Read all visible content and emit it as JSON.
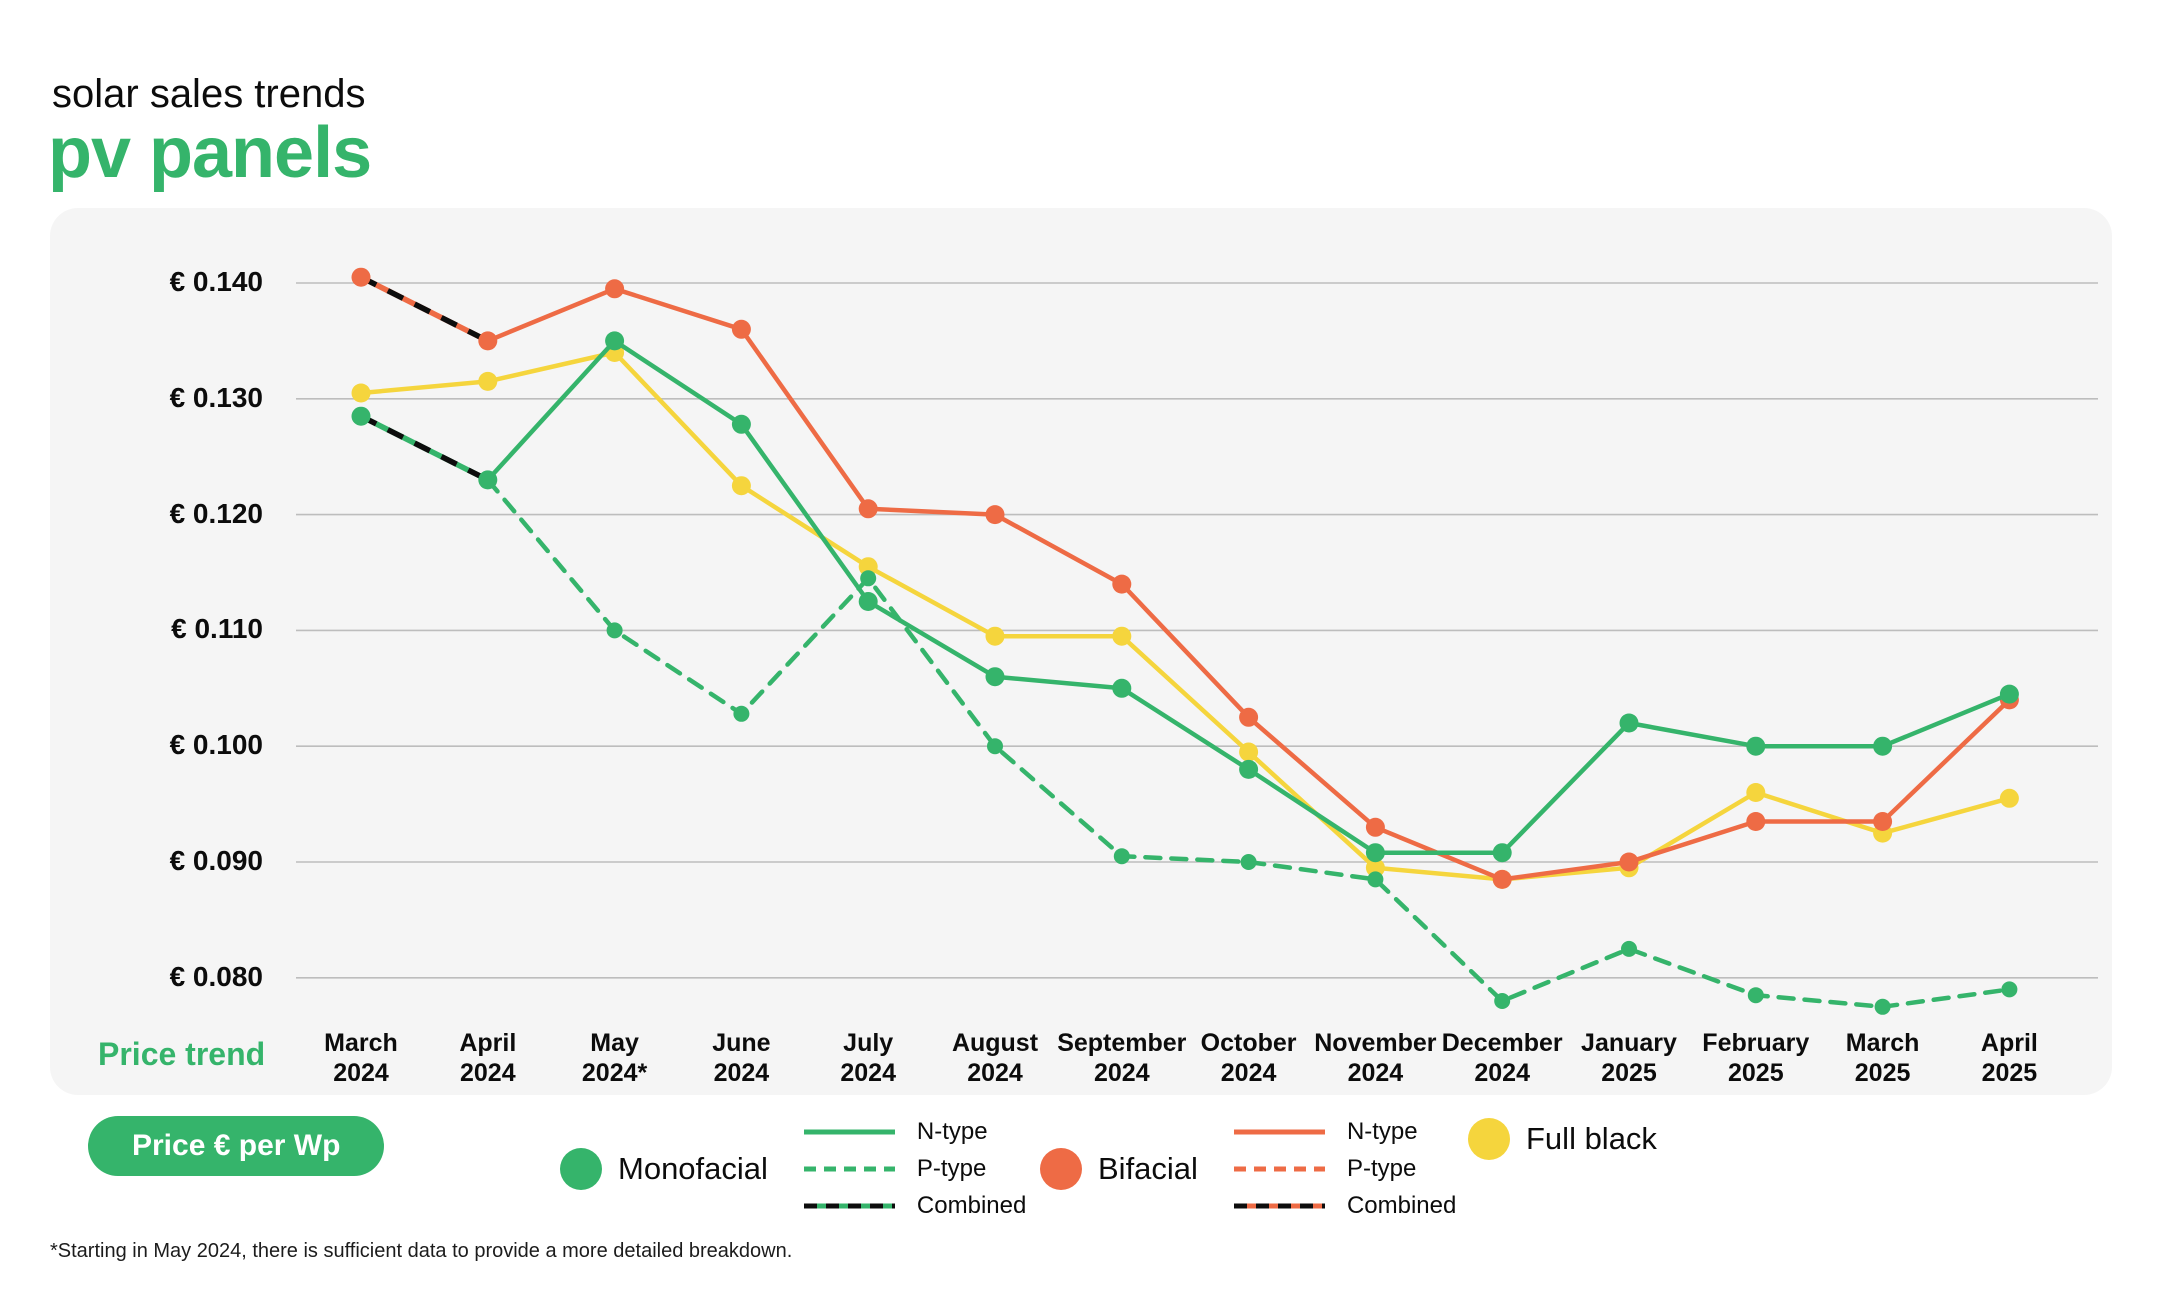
{
  "header": {
    "subtitle": "solar sales trends",
    "title": "pv panels"
  },
  "badge": {
    "label": "Price € per Wp"
  },
  "footnote": {
    "text": "*Starting in May 2024, there is sufficient data to provide a more detailed breakdown."
  },
  "chart_data": {
    "type": "line",
    "title": "solar sales trends — pv panels",
    "xlabel": "Price trend",
    "ylabel": "Price € per Wp",
    "axis_label": "Price trend",
    "grid": true,
    "y_axis": {
      "prefix": "€ ",
      "ticks": [
        0.14,
        0.13,
        0.12,
        0.11,
        0.1,
        0.09,
        0.08
      ],
      "min": 0.08,
      "max": 0.14
    },
    "categories": [
      [
        "March",
        "2024"
      ],
      [
        "April",
        "2024"
      ],
      [
        "May",
        "2024*"
      ],
      [
        "June",
        "2024"
      ],
      [
        "July",
        "2024"
      ],
      [
        "August",
        "2024"
      ],
      [
        "September",
        "2024"
      ],
      [
        "October",
        "2024"
      ],
      [
        "November",
        "2024"
      ],
      [
        "December",
        "2024"
      ],
      [
        "January",
        "2025"
      ],
      [
        "February",
        "2025"
      ],
      [
        "March",
        "2025"
      ],
      [
        "April",
        "2025"
      ]
    ],
    "series": [
      {
        "id": "full-black",
        "group": "Full black",
        "variant": "",
        "style": "solid",
        "color": "#f5d53d",
        "start_index": 0,
        "values": [
          0.1305,
          0.1315,
          0.134,
          0.1225,
          0.1155,
          0.1095,
          0.1095,
          0.0995,
          0.0895,
          0.0885,
          0.0895,
          0.096,
          0.0925,
          0.0955
        ]
      },
      {
        "id": "bifacial-n-type",
        "group": "Bifacial",
        "variant": "N-type",
        "style": "solid",
        "color": "#ee6b45",
        "start_index": 1,
        "values": [
          0.135,
          0.1395,
          0.136,
          0.1205,
          0.12,
          0.114,
          0.1025,
          0.093,
          0.0885,
          0.09,
          0.0935,
          0.0935,
          0.104
        ]
      },
      {
        "id": "monofacial-p-type",
        "group": "Monofacial",
        "variant": "P-type",
        "style": "dashed",
        "color": "#35b46b",
        "start_index": 1,
        "values": [
          0.123,
          0.11,
          0.1028,
          0.1145,
          0.1,
          0.0905,
          0.09,
          0.0885,
          0.078,
          0.0825,
          0.0785,
          0.0775,
          0.079
        ]
      },
      {
        "id": "monofacial-n-type",
        "group": "Monofacial",
        "variant": "N-type",
        "style": "solid",
        "color": "#35b46b",
        "start_index": 1,
        "values": [
          0.123,
          0.135,
          0.1278,
          0.1125,
          0.106,
          0.105,
          0.098,
          0.0908,
          0.0908,
          0.102,
          0.1,
          0.1,
          0.1045
        ]
      },
      {
        "id": "bifacial-combined",
        "group": "Bifacial",
        "variant": "Combined",
        "style": "combined",
        "color": "#ee6b45",
        "start_index": 0,
        "values": [
          0.1405,
          0.135
        ]
      },
      {
        "id": "monofacial-combined",
        "group": "Monofacial",
        "variant": "Combined",
        "style": "combined",
        "color": "#35b46b",
        "start_index": 0,
        "values": [
          0.1285,
          0.123
        ]
      }
    ],
    "legend": {
      "position": "bottom",
      "groups": [
        {
          "label": "Monofacial",
          "color": "#35b46b",
          "items": [
            {
              "label": "N-type",
              "style": "solid"
            },
            {
              "label": "P-type",
              "style": "dashed"
            },
            {
              "label": "Combined",
              "style": "combined"
            }
          ]
        },
        {
          "label": "Bifacial",
          "color": "#ee6b45",
          "items": [
            {
              "label": "N-type",
              "style": "solid"
            },
            {
              "label": "P-type",
              "style": "dashed"
            },
            {
              "label": "Combined",
              "style": "combined"
            }
          ]
        },
        {
          "label": "Full black",
          "color": "#f5d53d",
          "items": []
        }
      ]
    },
    "colors": {
      "green": "#35b46b",
      "orange": "#ee6b45",
      "yellow": "#f5d53d",
      "combined_overlay": "#0d0d0d",
      "panel_bg": "#f5f5f5",
      "gridline": "#bdbdbd"
    }
  }
}
